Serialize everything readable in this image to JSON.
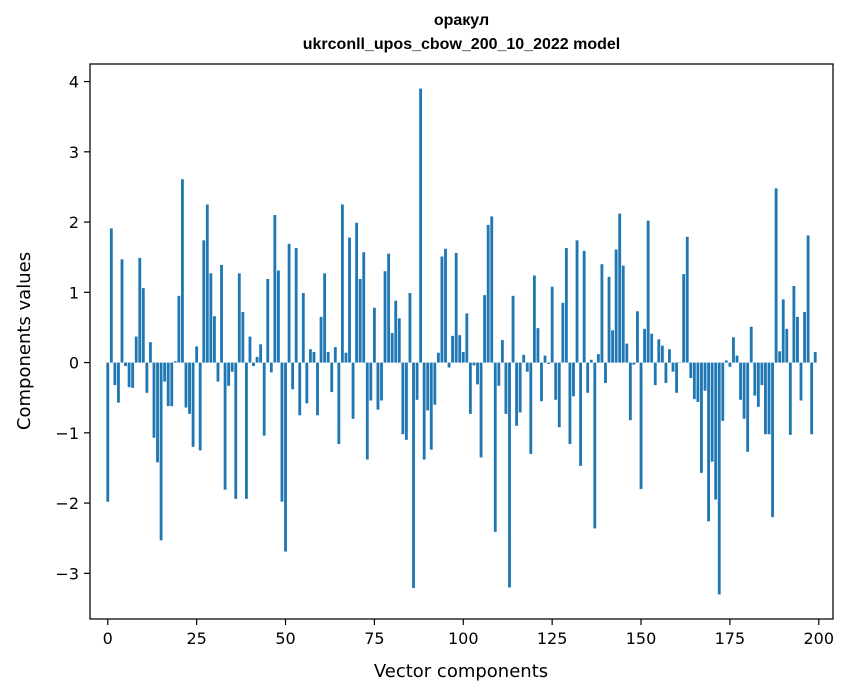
{
  "chart_data": {
    "type": "bar",
    "title": "оракул",
    "subtitle": "ukrconll_upos_cbow_200_10_2022 model",
    "xlabel": "Vector components",
    "ylabel": "Components values",
    "xlim": [
      -5,
      204
    ],
    "ylim": [
      -3.65,
      4.25
    ],
    "xticks": [
      0,
      25,
      50,
      75,
      100,
      125,
      150,
      175,
      200
    ],
    "yticks": [
      -3,
      -2,
      -1,
      0,
      1,
      2,
      3,
      4
    ],
    "xtick_labels": [
      "0",
      "25",
      "50",
      "75",
      "100",
      "125",
      "150",
      "175",
      "200"
    ],
    "ytick_labels": [
      "−3",
      "−2",
      "−1",
      "0",
      "1",
      "2",
      "3",
      "4"
    ],
    "grid": false,
    "color": "#1f77b4",
    "x": [
      0,
      1,
      2,
      3,
      4,
      5,
      6,
      7,
      8,
      9,
      10,
      11,
      12,
      13,
      14,
      15,
      16,
      17,
      18,
      19,
      20,
      21,
      22,
      23,
      24,
      25,
      26,
      27,
      28,
      29,
      30,
      31,
      32,
      33,
      34,
      35,
      36,
      37,
      38,
      39,
      40,
      41,
      42,
      43,
      44,
      45,
      46,
      47,
      48,
      49,
      50,
      51,
      52,
      53,
      54,
      55,
      56,
      57,
      58,
      59,
      60,
      61,
      62,
      63,
      64,
      65,
      66,
      67,
      68,
      69,
      70,
      71,
      72,
      73,
      74,
      75,
      76,
      77,
      78,
      79,
      80,
      81,
      82,
      83,
      84,
      85,
      86,
      87,
      88,
      89,
      90,
      91,
      92,
      93,
      94,
      95,
      96,
      97,
      98,
      99,
      100,
      101,
      102,
      103,
      104,
      105,
      106,
      107,
      108,
      109,
      110,
      111,
      112,
      113,
      114,
      115,
      116,
      117,
      118,
      119,
      120,
      121,
      122,
      123,
      124,
      125,
      126,
      127,
      128,
      129,
      130,
      131,
      132,
      133,
      134,
      135,
      136,
      137,
      138,
      139,
      140,
      141,
      142,
      143,
      144,
      145,
      146,
      147,
      148,
      149,
      150,
      151,
      152,
      153,
      154,
      155,
      156,
      157,
      158,
      159,
      160,
      161,
      162,
      163,
      164,
      165,
      166,
      167,
      168,
      169,
      170,
      171,
      172,
      173,
      174,
      175,
      176,
      177,
      178,
      179,
      180,
      181,
      182,
      183,
      184,
      185,
      186,
      187,
      188,
      189,
      190,
      191,
      192,
      193,
      194,
      195,
      196,
      197,
      198,
      199
    ],
    "values": [
      -1.98,
      1.91,
      -0.32,
      -0.57,
      1.47,
      -0.05,
      -0.35,
      -0.36,
      0.37,
      1.49,
      1.06,
      -0.43,
      0.29,
      -1.07,
      -1.42,
      -2.53,
      -0.27,
      -0.62,
      -0.62,
      0.02,
      0.95,
      2.61,
      -0.64,
      -0.73,
      -1.2,
      0.23,
      -1.25,
      1.74,
      2.25,
      1.27,
      0.66,
      -0.27,
      1.39,
      -1.81,
      -0.33,
      -0.13,
      -1.94,
      1.27,
      0.72,
      -1.94,
      0.37,
      -0.05,
      0.08,
      0.26,
      -1.04,
      1.19,
      -0.14,
      2.1,
      1.31,
      -1.98,
      -2.69,
      1.69,
      -0.38,
      1.63,
      -0.75,
      0.99,
      -0.58,
      0.19,
      0.15,
      -0.75,
      0.65,
      1.27,
      0.15,
      -0.42,
      0.22,
      -1.16,
      2.25,
      0.14,
      1.78,
      -0.8,
      1.99,
      1.19,
      1.57,
      -1.38,
      -0.54,
      0.78,
      -0.67,
      -0.54,
      1.3,
      1.55,
      0.42,
      0.88,
      0.63,
      -1.02,
      -1.1,
      0.99,
      -3.21,
      -0.53,
      3.9,
      -1.38,
      -0.68,
      -1.24,
      -0.6,
      0.14,
      1.51,
      1.62,
      -0.07,
      0.38,
      1.56,
      0.39,
      0.15,
      0.7,
      -0.73,
      -0.04,
      -0.31,
      -1.35,
      0.96,
      1.96,
      2.08,
      -2.41,
      -0.33,
      0.32,
      -0.73,
      -3.2,
      0.95,
      -0.9,
      -0.71,
      0.11,
      -0.13,
      -1.3,
      1.24,
      0.49,
      -0.55,
      0.1,
      -0.02,
      1.08,
      -0.53,
      -0.92,
      0.85,
      1.63,
      -1.16,
      -0.48,
      1.74,
      -1.47,
      1.59,
      -0.43,
      0.04,
      -2.36,
      0.12,
      1.4,
      -0.29,
      1.22,
      0.46,
      1.61,
      2.12,
      1.38,
      0.27,
      -0.82,
      -0.03,
      0.73,
      -1.8,
      0.48,
      2.02,
      0.41,
      -0.32,
      0.33,
      0.24,
      -0.29,
      0.19,
      -0.13,
      -0.43,
      0.0,
      1.26,
      1.79,
      -0.22,
      -0.52,
      -0.56,
      -1.57,
      -0.4,
      -2.26,
      -1.41,
      -1.95,
      -3.3,
      -0.83,
      0.03,
      -0.06,
      0.36,
      0.1,
      -0.53,
      -0.8,
      -1.27,
      0.51,
      -0.47,
      -0.63,
      -0.32,
      -1.02,
      -1.02,
      -2.2,
      2.48,
      0.16,
      0.9,
      0.48,
      -1.03,
      1.09,
      0.65,
      -0.54,
      0.72,
      1.81,
      -1.02,
      0.15
    ]
  }
}
